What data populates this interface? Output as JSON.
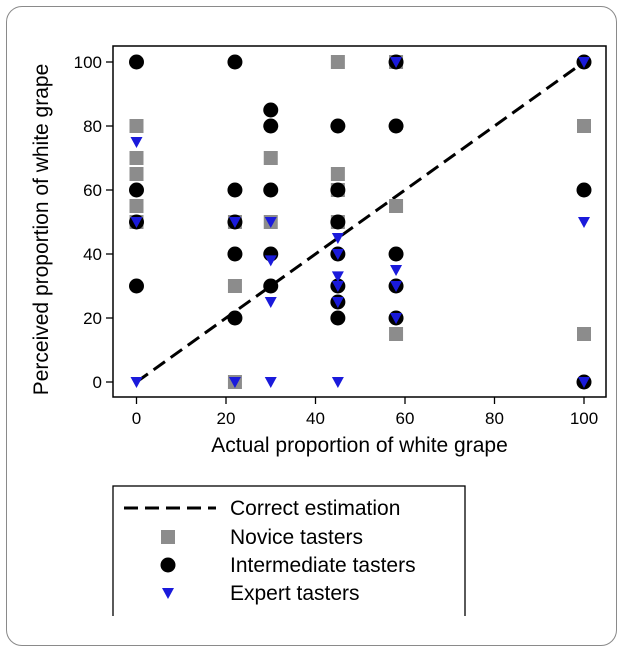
{
  "chart_data": {
    "type": "scatter",
    "title": "",
    "xlabel": "Actual proportion of white grape",
    "ylabel": "Perceived proportion of white grape",
    "xlim": [
      -4,
      104
    ],
    "ylim": [
      -4,
      104
    ],
    "xticks": [
      0,
      20,
      40,
      60,
      80,
      100
    ],
    "yticks": [
      0,
      20,
      40,
      60,
      80,
      100
    ],
    "grid": false,
    "legend_placement": "bottom",
    "reference_line": {
      "name": "Correct estimation",
      "style": "dashed",
      "color": "#000000",
      "points": [
        [
          0,
          0
        ],
        [
          100,
          100
        ]
      ]
    },
    "series": [
      {
        "name": "Novice tasters",
        "marker": "square",
        "color": "#8c8c8c",
        "points": [
          [
            0,
            80
          ],
          [
            0,
            70
          ],
          [
            0,
            65
          ],
          [
            0,
            55
          ],
          [
            0,
            50
          ],
          [
            22,
            50
          ],
          [
            22,
            30
          ],
          [
            22,
            0
          ],
          [
            30,
            70
          ],
          [
            30,
            50
          ],
          [
            45,
            100
          ],
          [
            45,
            65
          ],
          [
            45,
            60
          ],
          [
            45,
            50
          ],
          [
            58,
            100
          ],
          [
            58,
            55
          ],
          [
            58,
            15
          ],
          [
            100,
            80
          ],
          [
            100,
            15
          ]
        ]
      },
      {
        "name": "Intermediate tasters",
        "marker": "circle",
        "color": "#000000",
        "points": [
          [
            0,
            100
          ],
          [
            0,
            60
          ],
          [
            0,
            50
          ],
          [
            0,
            30
          ],
          [
            22,
            100
          ],
          [
            22,
            60
          ],
          [
            22,
            50
          ],
          [
            22,
            40
          ],
          [
            22,
            20
          ],
          [
            30,
            85
          ],
          [
            30,
            80
          ],
          [
            30,
            60
          ],
          [
            30,
            40
          ],
          [
            30,
            30
          ],
          [
            45,
            80
          ],
          [
            45,
            60
          ],
          [
            45,
            50
          ],
          [
            45,
            40
          ],
          [
            45,
            30
          ],
          [
            45,
            25
          ],
          [
            45,
            20
          ],
          [
            58,
            100
          ],
          [
            58,
            80
          ],
          [
            58,
            40
          ],
          [
            58,
            30
          ],
          [
            58,
            20
          ],
          [
            100,
            100
          ],
          [
            100,
            60
          ],
          [
            100,
            0
          ]
        ]
      },
      {
        "name": "Expert tasters",
        "marker": "triangle-down",
        "color": "#1a1adb",
        "points": [
          [
            0,
            75
          ],
          [
            0,
            50
          ],
          [
            0,
            0
          ],
          [
            22,
            50
          ],
          [
            22,
            0
          ],
          [
            30,
            50
          ],
          [
            30,
            38
          ],
          [
            30,
            25
          ],
          [
            30,
            0
          ],
          [
            45,
            45
          ],
          [
            45,
            40
          ],
          [
            45,
            33
          ],
          [
            45,
            30
          ],
          [
            45,
            25
          ],
          [
            45,
            0
          ],
          [
            58,
            100
          ],
          [
            58,
            35
          ],
          [
            58,
            30
          ],
          [
            58,
            20
          ],
          [
            100,
            100
          ],
          [
            100,
            50
          ],
          [
            100,
            0
          ]
        ]
      }
    ]
  }
}
